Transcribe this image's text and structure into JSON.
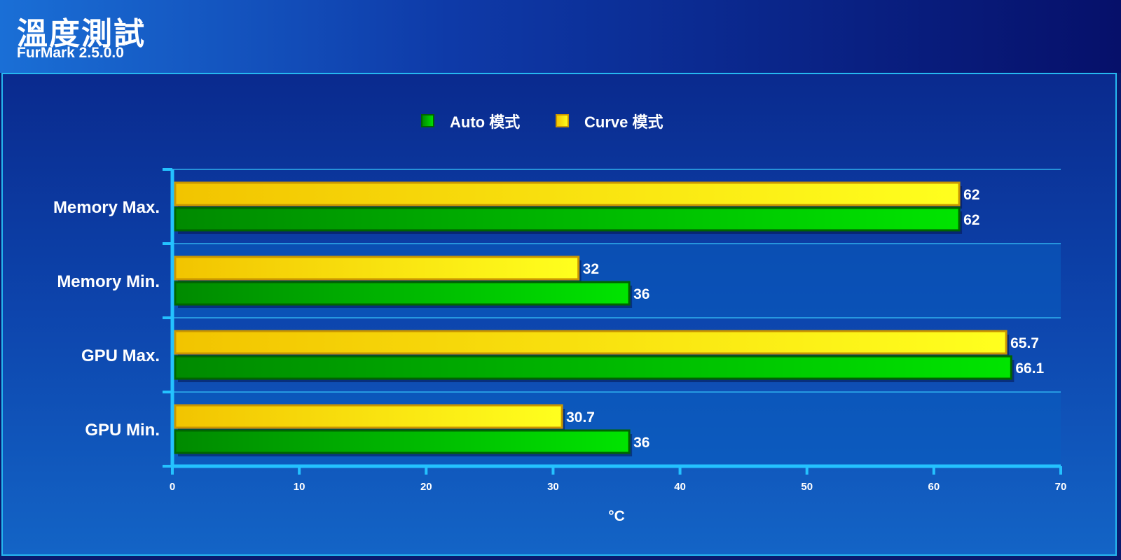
{
  "header": {
    "title": "溫度測試",
    "subtitle": "FurMark 2.5.0.0"
  },
  "chart_data": {
    "type": "bar",
    "orientation": "horizontal",
    "categories": [
      "Memory Max.",
      "Memory Min.",
      "GPU Max.",
      "GPU Min."
    ],
    "series": [
      {
        "name": "Auto 模式",
        "color": "#00c400",
        "values": [
          62,
          36,
          66.1,
          36
        ]
      },
      {
        "name": "Curve 模式",
        "color": "#ffe000",
        "values": [
          62,
          32,
          65.7,
          30.7
        ]
      }
    ],
    "value_labels": {
      "Auto 模式": [
        "62",
        "36",
        "66.1",
        "36"
      ],
      "Curve 模式": [
        "62",
        "32",
        "65.7",
        "30.7"
      ]
    },
    "xlabel": "°C",
    "xlim": [
      0,
      70
    ],
    "xticks": [
      0,
      10,
      20,
      30,
      40,
      50,
      60,
      70
    ],
    "legend_position": "top-center",
    "grid": true
  }
}
